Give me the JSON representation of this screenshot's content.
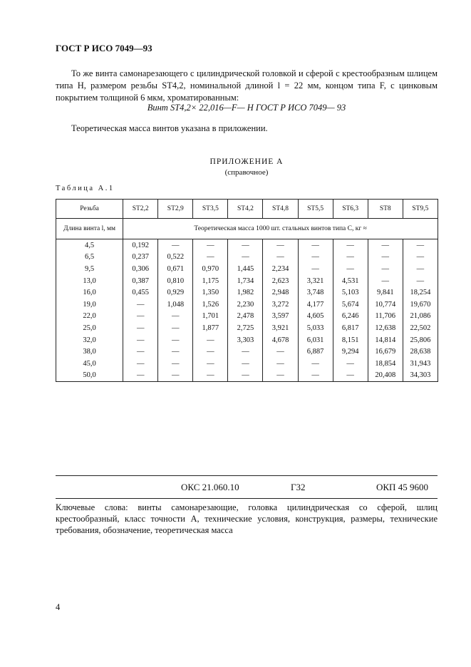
{
  "header": "ГОСТ Р ИСО 7049—93",
  "paragraph": "То же винта самонарезающего с цилиндрической головкой и сферой с крестообразным шлицем типа Н, размером резьбы ST4,2, номинальной длиной l = 22 мм, концом типа F, с цинковым покрытием толщиной 6 мкм, хроматированным:",
  "formula": "Винт ST4,2× 22,016—F— Н ГОСТ Р ИСО 7049— 93",
  "mass_note": "Теоретическая масса винтов указана в приложении.",
  "appendix_title": "ПРИЛОЖЕНИЕ А",
  "appendix_sub": "(справочное)",
  "table_caption": "Таблица А.1",
  "table": {
    "thread_label": "Резьба",
    "threads": [
      "ST2,2",
      "ST2,9",
      "ST3,5",
      "ST4,2",
      "ST4,8",
      "ST5,5",
      "ST6,3",
      "ST8",
      "ST9,5"
    ],
    "length_label": "Длина винта l, мм",
    "mass_label": "Теоретическая масса 1000 шт. стальных винтов типа С, кг ≈",
    "rows": [
      [
        "4,5",
        "0,192",
        "—",
        "—",
        "—",
        "—",
        "—",
        "—",
        "—",
        "—"
      ],
      [
        "6,5",
        "0,237",
        "0,522",
        "—",
        "—",
        "—",
        "—",
        "—",
        "—",
        "—"
      ],
      [
        "9,5",
        "0,306",
        "0,671",
        "0,970",
        "1,445",
        "2,234",
        "—",
        "—",
        "—",
        "—"
      ],
      [
        "13,0",
        "0,387",
        "0,810",
        "1,175",
        "1,734",
        "2,623",
        "3,321",
        "4,531",
        "—",
        "—"
      ],
      [
        "16,0",
        "0,455",
        "0,929",
        "1,350",
        "1,982",
        "2,948",
        "3,748",
        "5,103",
        "9,841",
        "18,254"
      ],
      [
        "19,0",
        "—",
        "1,048",
        "1,526",
        "2,230",
        "3,272",
        "4,177",
        "5,674",
        "10,774",
        "19,670"
      ],
      [
        "22,0",
        "—",
        "—",
        "1,701",
        "2,478",
        "3,597",
        "4,605",
        "6,246",
        "11,706",
        "21,086"
      ],
      [
        "25,0",
        "—",
        "—",
        "1,877",
        "2,725",
        "3,921",
        "5,033",
        "6,817",
        "12,638",
        "22,502"
      ],
      [
        "32,0",
        "—",
        "—",
        "—",
        "3,303",
        "4,678",
        "6,031",
        "8,151",
        "14,814",
        "25,806"
      ],
      [
        "38,0",
        "—",
        "—",
        "—",
        "—",
        "—",
        "6,887",
        "9,294",
        "16,679",
        "28,638"
      ],
      [
        "45,0",
        "—",
        "—",
        "—",
        "—",
        "—",
        "—",
        "—",
        "18,854",
        "31,943"
      ],
      [
        "50,0",
        "—",
        "—",
        "—",
        "—",
        "—",
        "—",
        "—",
        "20,408",
        "34,303"
      ]
    ]
  },
  "footer": {
    "oks": "ОКС 21.060.10",
    "g": "Г32",
    "okp": "ОКП 45 9600",
    "keywords": "Ключевые слова: винты самонарезающие, головка цилиндрическая со сферой, шлиц крестообразный, класс точности А, технические условия, конструкция, размеры, технические требования, обозначение, теоретическая масса"
  },
  "page_number": "4"
}
